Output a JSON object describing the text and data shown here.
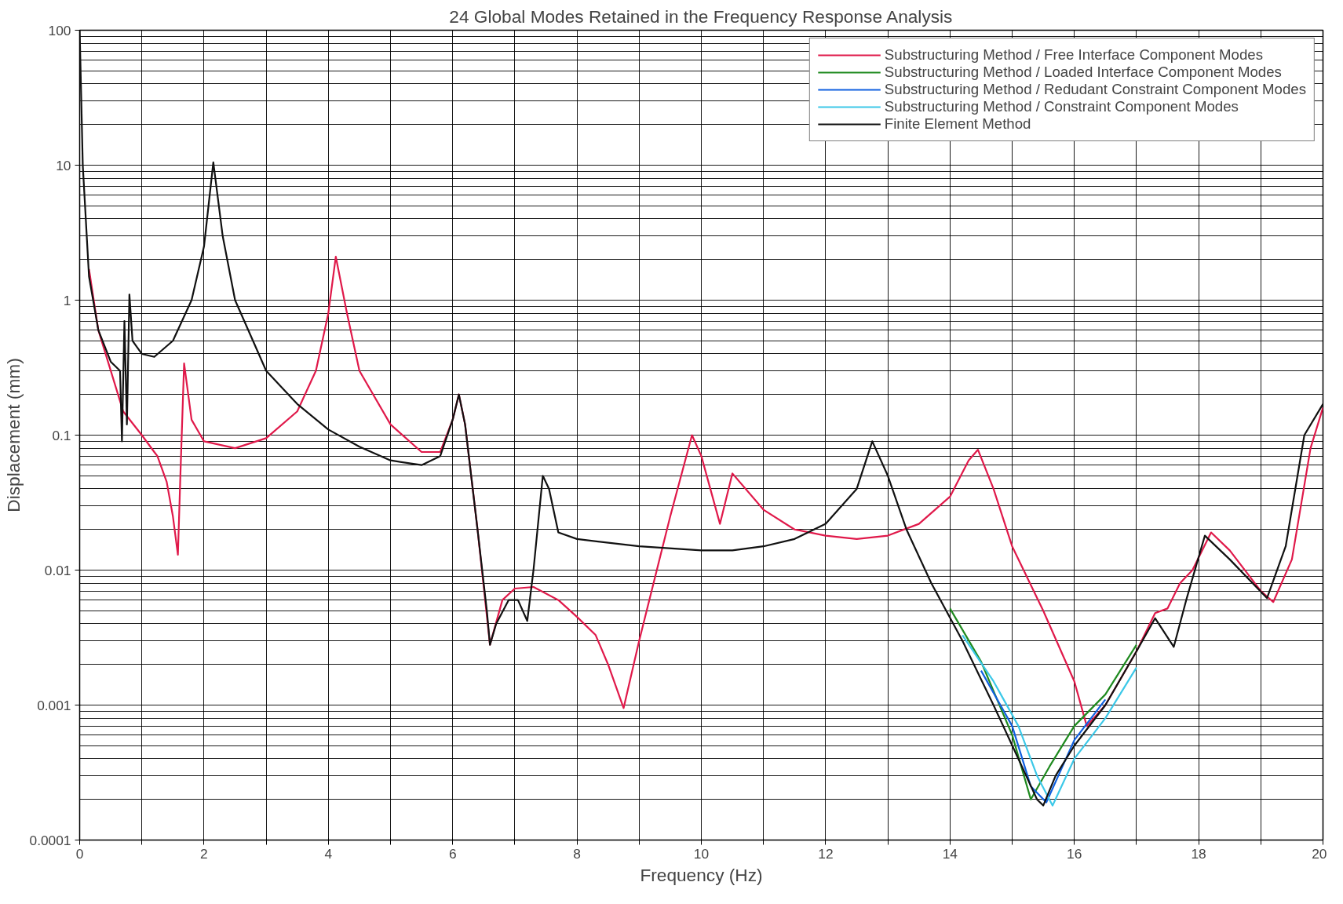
{
  "chart_data": {
    "type": "line",
    "title": "24 Global Modes Retained in the Frequency Response Analysis",
    "xlabel": "Frequency (Hz)",
    "ylabel": "Displacement (mm)",
    "log": "y",
    "grid": true,
    "legend": "top right",
    "line_style": "solid",
    "xlim": [
      0,
      20
    ],
    "ylim": [
      0.0001,
      100
    ],
    "xticks": [
      0,
      {
        "value": 1,
        "label": null
      },
      2,
      {
        "value": 3,
        "label": null
      },
      4,
      {
        "value": 5,
        "label": null
      },
      6,
      {
        "value": 7,
        "label": null
      },
      8,
      {
        "value": 9,
        "label": null
      },
      10,
      {
        "value": 11,
        "label": null
      },
      12,
      {
        "value": 13,
        "label": null
      },
      14,
      {
        "value": 15,
        "label": null
      },
      16,
      {
        "value": 17,
        "label": null
      },
      18,
      {
        "value": 19,
        "label": null
      },
      20
    ],
    "yticks": [
      {
        "value": 0.0001,
        "label": "0.0001"
      },
      {
        "value": 0.001,
        "label": "0.001"
      },
      {
        "value": 0.01,
        "label": "0.01"
      },
      {
        "value": 0.1,
        "label": "0.1"
      },
      1,
      10,
      100
    ],
    "series": [
      {
        "name": "Substructuring Method / Free Interface Component Modes",
        "color": "#e0194a",
        "x": [
          0.15,
          0.3,
          0.5,
          0.7,
          1.0,
          1.2,
          1.25,
          1.4,
          1.5,
          1.58,
          1.62,
          1.68,
          1.8,
          2.0,
          2.5,
          3.0,
          3.5,
          3.8,
          4.0,
          4.12,
          4.3,
          4.5,
          5.0,
          5.5,
          5.8,
          6.0,
          6.1,
          6.2,
          6.4,
          6.6,
          6.8,
          7.0,
          7.3,
          7.7,
          8.0,
          8.3,
          8.5,
          8.75,
          9.0,
          9.5,
          9.85,
          10.0,
          10.3,
          10.5,
          11.0,
          11.5,
          12.0,
          12.5,
          13.0,
          13.5,
          14.0,
          14.3,
          14.45,
          14.7,
          15.0,
          15.5,
          16.0,
          16.2,
          16.5,
          17.0,
          17.3,
          17.5,
          17.7,
          17.9,
          18.2,
          18.5,
          19.0,
          19.2,
          19.5,
          19.8,
          20.0
        ],
        "values": [
          1.7,
          0.6,
          0.3,
          0.15,
          0.1,
          0.075,
          0.07,
          0.045,
          0.025,
          0.013,
          0.05,
          0.34,
          0.13,
          0.09,
          0.08,
          0.095,
          0.15,
          0.3,
          0.8,
          2.1,
          0.8,
          0.3,
          0.12,
          0.075,
          0.075,
          0.13,
          0.2,
          0.12,
          0.02,
          0.0028,
          0.006,
          0.0073,
          0.0075,
          0.006,
          0.0045,
          0.0033,
          0.002,
          0.00095,
          0.003,
          0.025,
          0.1,
          0.07,
          0.022,
          0.052,
          0.028,
          0.02,
          0.018,
          0.017,
          0.018,
          0.022,
          0.035,
          0.065,
          0.078,
          0.04,
          0.015,
          0.005,
          0.0015,
          0.0007,
          0.001,
          0.0025,
          0.0048,
          0.0052,
          0.008,
          0.01,
          0.019,
          0.014,
          0.007,
          0.0058,
          0.012,
          0.08,
          0.16
        ]
      },
      {
        "name": "Substructuring Method / Loaded Interface Component Modes",
        "color": "#1f8a1f",
        "x": [
          14.0,
          14.5,
          15.0,
          15.3,
          15.6,
          16.0,
          16.5,
          17.0
        ],
        "values": [
          0.0052,
          0.0021,
          0.0006,
          0.0002,
          0.00035,
          0.0007,
          0.0012,
          0.0028
        ]
      },
      {
        "name": "Substructuring Method / Redudant Constraint Component Modes",
        "color": "#1060e0",
        "x": [
          14.5,
          15.0,
          15.3,
          15.55,
          16.0,
          16.5
        ],
        "values": [
          0.0018,
          0.0007,
          0.00025,
          0.00019,
          0.00055,
          0.0011
        ]
      },
      {
        "name": "Substructuring Method / Constraint Component Modes",
        "color": "#3cc8e8",
        "x": [
          14.2,
          14.7,
          15.1,
          15.4,
          15.65,
          16.0,
          16.5,
          17.0
        ],
        "values": [
          0.0033,
          0.0015,
          0.0007,
          0.0003,
          0.00018,
          0.0004,
          0.0008,
          0.0019
        ]
      },
      {
        "name": "Finite Element Method",
        "color": "#111111",
        "x": [
          0.0,
          0.05,
          0.15,
          0.3,
          0.5,
          0.65,
          0.68,
          0.72,
          0.76,
          0.8,
          0.85,
          1.0,
          1.2,
          1.5,
          1.8,
          2.0,
          2.15,
          2.3,
          2.5,
          3.0,
          3.5,
          4.0,
          4.5,
          5.0,
          5.5,
          5.8,
          6.0,
          6.1,
          6.2,
          6.4,
          6.55,
          6.6,
          6.7,
          6.9,
          7.05,
          7.2,
          7.3,
          7.45,
          7.55,
          7.7,
          8.0,
          9.0,
          10.0,
          10.5,
          11.0,
          11.5,
          12.0,
          12.5,
          12.75,
          13.0,
          13.3,
          13.7,
          14.2,
          14.7,
          15.1,
          15.4,
          15.5,
          15.7,
          16.0,
          16.5,
          17.0,
          17.3,
          17.6,
          17.8,
          18.1,
          18.5,
          19.1,
          19.4,
          19.7,
          20.0
        ],
        "values": [
          100,
          10,
          1.5,
          0.6,
          0.35,
          0.3,
          0.09,
          0.7,
          0.12,
          1.1,
          0.5,
          0.4,
          0.38,
          0.5,
          1.0,
          2.5,
          10.5,
          3,
          1.0,
          0.3,
          0.17,
          0.11,
          0.082,
          0.065,
          0.06,
          0.07,
          0.13,
          0.2,
          0.12,
          0.02,
          0.005,
          0.0028,
          0.004,
          0.006,
          0.006,
          0.0042,
          0.01,
          0.05,
          0.04,
          0.019,
          0.017,
          0.015,
          0.014,
          0.014,
          0.015,
          0.017,
          0.022,
          0.04,
          0.09,
          0.05,
          0.02,
          0.008,
          0.003,
          0.001,
          0.0004,
          0.0002,
          0.00018,
          0.0003,
          0.0005,
          0.001,
          0.0025,
          0.0044,
          0.0027,
          0.006,
          0.018,
          0.012,
          0.0062,
          0.015,
          0.1,
          0.17
        ]
      }
    ]
  }
}
